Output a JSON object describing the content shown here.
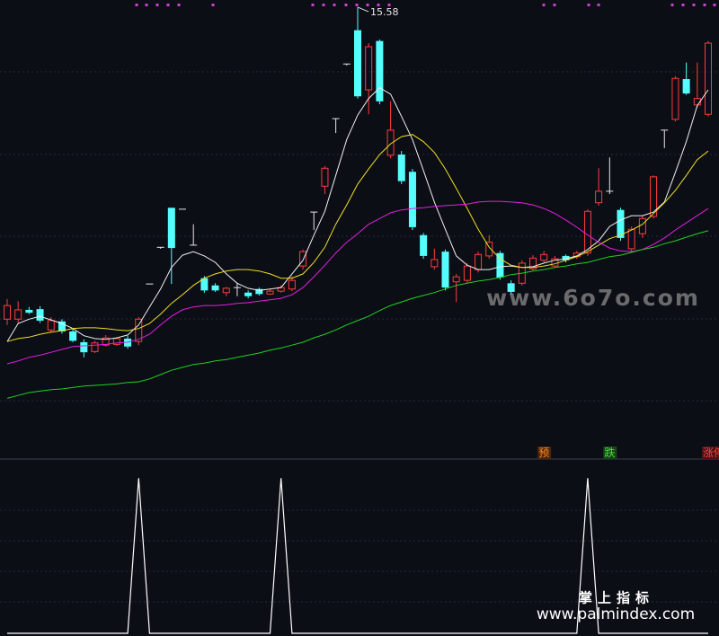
{
  "chart_data": {
    "type": "candlestick",
    "ylim": [
      9.37,
      15.68
    ],
    "up_color": "#ff3b3b",
    "down_color": "#54ffff",
    "doji_color": "#e6e6e6",
    "open": [
      11.24,
      11.24,
      11.37,
      11.38,
      11.09,
      11.21,
      11.07,
      10.92,
      10.79,
      10.88,
      10.89,
      10.97,
      10.93,
      11.73,
      12.24,
      12.79,
      12.77,
      12.27,
      11.81,
      11.71,
      11.61,
      11.68,
      11.61,
      11.66,
      11.59,
      11.63,
      11.66,
      11.98,
      12.73,
      13.09,
      14.03,
      14.79,
      15.26,
      14.43,
      15.11,
      13.52,
      13.53,
      13.29,
      12.41,
      11.97,
      12.18,
      11.76,
      11.78,
      11.93,
      12.12,
      12.16,
      11.74,
      11.74,
      11.94,
      12.06,
      11.98,
      12.12,
      12.11,
      12.16,
      12.86,
      13.02,
      12.76,
      12.22,
      12.43,
      12.67,
      13.87,
      14.02,
      14.58,
      14.22,
      14.09
    ],
    "high": [
      11.52,
      11.49,
      11.41,
      11.42,
      11.27,
      11.24,
      11.11,
      10.96,
      10.94,
      11.02,
      10.99,
      11.01,
      11.27,
      11.73,
      12.24,
      12.79,
      12.77,
      12.56,
      11.84,
      11.74,
      11.69,
      11.74,
      11.64,
      11.68,
      11.66,
      11.71,
      11.84,
      12.21,
      12.73,
      13.37,
      14.03,
      14.79,
      15.58,
      15.08,
      15.13,
      14.27,
      13.58,
      13.33,
      12.44,
      12.22,
      12.21,
      11.87,
      12.02,
      12.18,
      12.41,
      12.19,
      11.78,
      12.06,
      12.13,
      12.19,
      12.12,
      12.14,
      12.19,
      12.77,
      13.34,
      13.49,
      12.79,
      12.53,
      12.68,
      13.24,
      13.87,
      14.62,
      14.81,
      14.81,
      15.11
    ],
    "low": [
      11.16,
      11.18,
      11.31,
      11.19,
      11.06,
      11.04,
      10.92,
      10.71,
      10.77,
      10.86,
      10.87,
      10.83,
      10.88,
      11.73,
      12.22,
      11.73,
      12.77,
      12.27,
      11.61,
      11.62,
      11.56,
      11.56,
      11.53,
      11.57,
      11.58,
      11.61,
      11.63,
      11.93,
      12.48,
      12.98,
      13.83,
      14.77,
      14.31,
      14.09,
      14.23,
      13.48,
      13.12,
      12.48,
      12.08,
      11.93,
      11.64,
      11.48,
      11.74,
      11.89,
      12.08,
      11.79,
      11.59,
      11.71,
      11.92,
      12.03,
      11.96,
      12.03,
      12.08,
      12.12,
      12.82,
      12.98,
      12.33,
      12.16,
      12.37,
      12.64,
      13.62,
      13.99,
      14.36,
      14.18,
      14.06
    ],
    "close": [
      11.43,
      11.37,
      11.33,
      11.22,
      11.22,
      11.07,
      10.94,
      10.78,
      10.91,
      10.98,
      10.97,
      10.86,
      11.24,
      11.73,
      12.24,
      12.23,
      12.77,
      12.27,
      11.64,
      11.64,
      11.67,
      11.68,
      11.56,
      11.59,
      11.63,
      11.68,
      11.78,
      12.18,
      12.73,
      13.34,
      14.03,
      14.79,
      14.34,
      15.03,
      14.27,
      13.87,
      13.16,
      12.52,
      12.12,
      12.07,
      11.68,
      11.83,
      11.98,
      12.14,
      12.31,
      11.82,
      11.62,
      12.02,
      12.09,
      12.14,
      12.08,
      12.06,
      12.16,
      12.74,
      13.02,
      13.02,
      12.37,
      12.49,
      12.64,
      13.22,
      13.87,
      14.59,
      14.38,
      14.31,
      15.08
    ],
    "lines": [
      {
        "color": "#f0f0f0",
        "values": [
          10.93,
          11.18,
          11.24,
          11.28,
          11.23,
          11.18,
          11.11,
          11.01,
          10.97,
          10.96,
          10.98,
          11.02,
          11.16,
          11.41,
          11.66,
          11.96,
          12.13,
          12.18,
          12.12,
          12.03,
          11.87,
          11.74,
          11.67,
          11.64,
          11.66,
          11.68,
          11.87,
          12.06,
          12.41,
          12.74,
          13.24,
          13.74,
          14.08,
          14.31,
          14.46,
          14.37,
          14.06,
          13.74,
          13.31,
          12.87,
          12.49,
          12.12,
          11.99,
          11.93,
          11.93,
          11.97,
          11.98,
          11.96,
          11.97,
          12.02,
          12.06,
          12.08,
          12.12,
          12.21,
          12.33,
          12.53,
          12.62,
          12.68,
          12.68,
          12.73,
          12.87,
          13.28,
          13.71,
          14.21,
          14.43
        ]
      },
      {
        "color": "#f0e020",
        "values": [
          10.93,
          10.97,
          10.99,
          11.03,
          11.06,
          11.08,
          11.11,
          11.12,
          11.12,
          11.11,
          11.09,
          11.08,
          11.11,
          11.18,
          11.31,
          11.46,
          11.58,
          11.71,
          11.81,
          11.87,
          11.91,
          11.93,
          11.93,
          11.91,
          11.87,
          11.81,
          11.81,
          11.87,
          12.03,
          12.24,
          12.56,
          12.83,
          13.12,
          13.33,
          13.53,
          13.68,
          13.78,
          13.81,
          13.71,
          13.56,
          13.33,
          13.06,
          12.78,
          12.49,
          12.24,
          12.08,
          11.99,
          11.96,
          11.96,
          11.98,
          12.01,
          12.06,
          12.11,
          12.18,
          12.27,
          12.36,
          12.41,
          12.48,
          12.56,
          12.71,
          12.86,
          13.03,
          13.24,
          13.46,
          13.58
        ]
      },
      {
        "color": "#e020e0",
        "values": [
          10.62,
          10.66,
          10.71,
          10.74,
          10.78,
          10.82,
          10.86,
          10.87,
          10.88,
          10.89,
          10.91,
          10.92,
          10.96,
          11.03,
          11.16,
          11.28,
          11.37,
          11.41,
          11.43,
          11.43,
          11.44,
          11.46,
          11.47,
          11.49,
          11.51,
          11.53,
          11.58,
          11.68,
          11.83,
          11.99,
          12.16,
          12.31,
          12.43,
          12.56,
          12.64,
          12.72,
          12.76,
          12.78,
          12.79,
          12.81,
          12.82,
          12.83,
          12.84,
          12.87,
          12.88,
          12.88,
          12.87,
          12.86,
          12.83,
          12.78,
          12.71,
          12.62,
          12.52,
          12.41,
          12.31,
          12.23,
          12.19,
          12.18,
          12.21,
          12.28,
          12.37,
          12.48,
          12.58,
          12.68,
          12.78
        ]
      },
      {
        "color": "#20d020",
        "values": [
          10.14,
          10.18,
          10.22,
          10.24,
          10.26,
          10.27,
          10.29,
          10.31,
          10.32,
          10.33,
          10.34,
          10.36,
          10.37,
          10.41,
          10.47,
          10.53,
          10.57,
          10.61,
          10.63,
          10.66,
          10.68,
          10.71,
          10.74,
          10.77,
          10.81,
          10.84,
          10.88,
          10.92,
          10.98,
          11.03,
          11.09,
          11.16,
          11.22,
          11.28,
          11.36,
          11.43,
          11.48,
          11.53,
          11.57,
          11.61,
          11.66,
          11.71,
          11.74,
          11.77,
          11.79,
          11.82,
          11.86,
          11.88,
          11.91,
          11.93,
          11.96,
          11.98,
          12.01,
          12.03,
          12.07,
          12.11,
          12.13,
          12.17,
          12.21,
          12.24,
          12.29,
          12.33,
          12.38,
          12.43,
          12.47
        ]
      }
    ],
    "signal_labels": [
      null,
      null,
      null,
      null,
      null,
      null,
      null,
      null,
      null,
      null,
      null,
      null,
      null,
      null,
      null,
      null,
      null,
      null,
      null,
      null,
      null,
      null,
      null,
      null,
      null,
      null,
      null,
      null,
      null,
      null,
      null,
      null,
      null,
      null,
      null,
      null,
      null,
      null,
      null,
      null,
      null,
      null,
      null,
      null,
      null,
      null,
      null,
      null,
      null,
      {
        "text": "预",
        "color": "#ff8c1a",
        "background": "#4a2410"
      },
      null,
      null,
      null,
      null,
      null,
      {
        "text": "跌",
        "color": "#3fe03f",
        "background": "#184418"
      },
      null,
      null,
      null,
      null,
      null,
      null,
      null,
      null,
      {
        "text": "涨停",
        "color": "#ff4040",
        "background": "#4a1414"
      }
    ],
    "indicator": {
      "color": "#ffffff",
      "ylim": [
        0,
        1.1
      ],
      "values": [
        0,
        0,
        0,
        0,
        0,
        0,
        0,
        0,
        0,
        0,
        0,
        0,
        1,
        0,
        0,
        0,
        0,
        0,
        0,
        0,
        0,
        0,
        0,
        0,
        0,
        1,
        0,
        0,
        0,
        0,
        0,
        0,
        0,
        0,
        0,
        0,
        0,
        0,
        0,
        0,
        0,
        0,
        0,
        0,
        0,
        0,
        0,
        0,
        0,
        0,
        0,
        0,
        0,
        1,
        0,
        0,
        0,
        0,
        0,
        0,
        0,
        0,
        0,
        0,
        0
      ]
    }
  },
  "watermarks": [
    "www.6o7o.com",
    "掌上指标",
    "www.palmindex.com"
  ]
}
